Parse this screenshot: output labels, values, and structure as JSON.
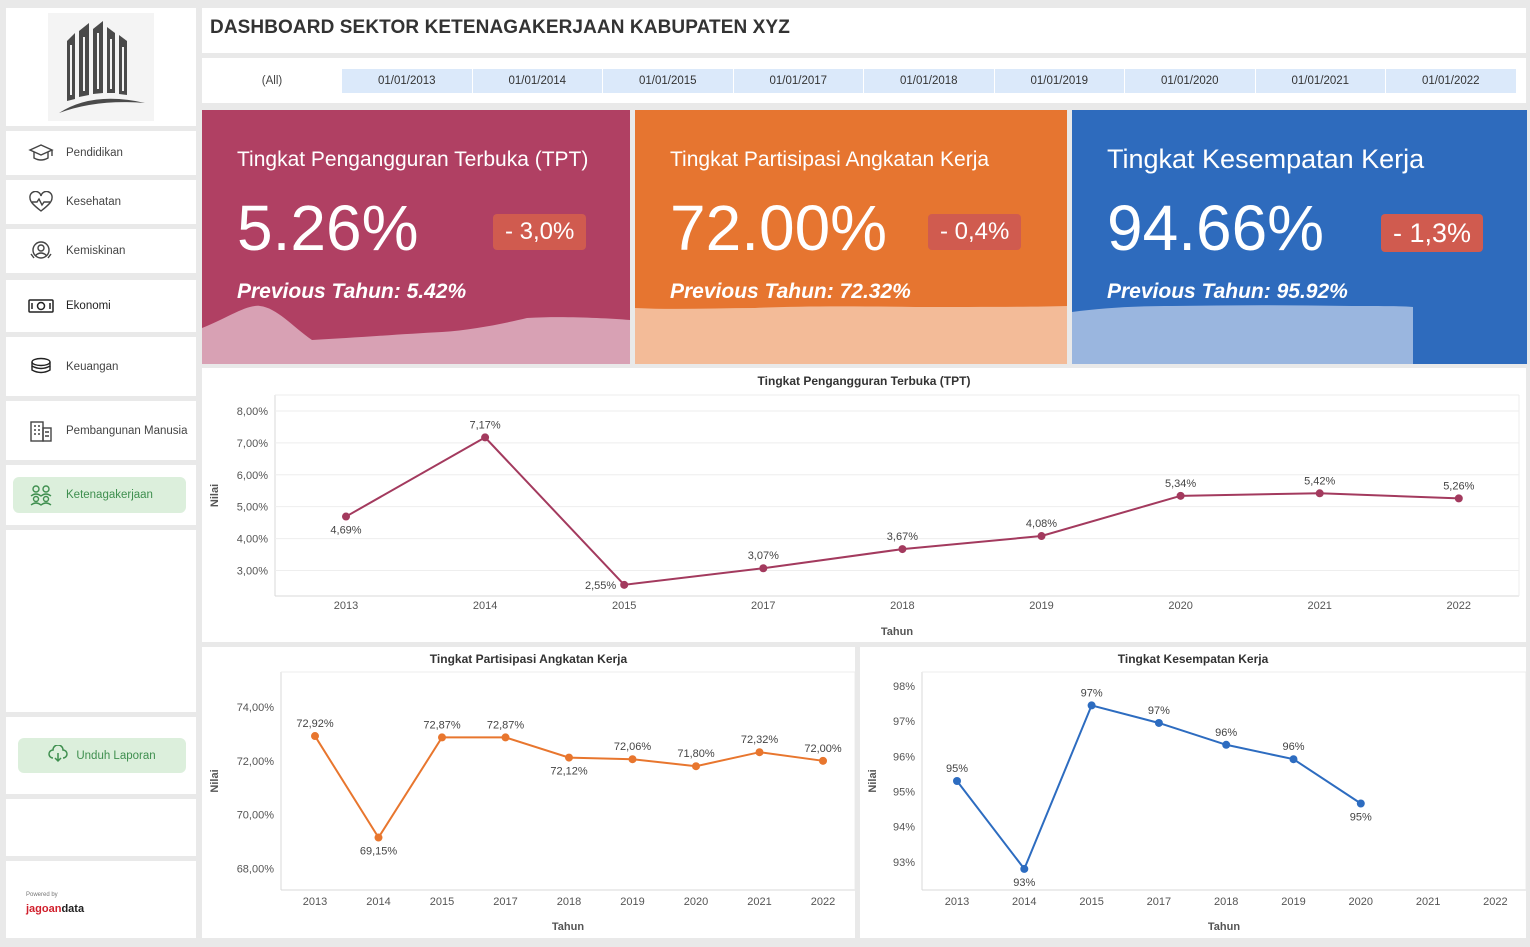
{
  "header": {
    "title": "DASHBOARD SEKTOR KETENAGAKERJAAN KABUPATEN XYZ"
  },
  "filter": {
    "all_label": "(All)",
    "dates": [
      "01/01/2013",
      "01/01/2014",
      "01/01/2015",
      "01/01/2017",
      "01/01/2018",
      "01/01/2019",
      "01/01/2020",
      "01/01/2021",
      "01/01/2022"
    ]
  },
  "sidebar": {
    "items": [
      {
        "label": "Pendidikan",
        "icon": "graduation-cap-icon"
      },
      {
        "label": "Kesehatan",
        "icon": "heart-pulse-icon"
      },
      {
        "label": "Kemiskinan",
        "icon": "poverty-icon"
      },
      {
        "label": "Ekonomi",
        "icon": "banknote-icon"
      },
      {
        "label": "Keuangan",
        "icon": "coins-icon"
      },
      {
        "label": "Pembangunan Manusia",
        "icon": "building-icon"
      },
      {
        "label": "Ketenagakerjaan",
        "icon": "people-icon",
        "active": true
      }
    ],
    "download_label": "Unduh Laporan",
    "powered_label": "Powered by",
    "brand_part1": "jagoan",
    "brand_part2": "data"
  },
  "kpis": [
    {
      "title": "Tingkat Pengangguran Terbuka (TPT)",
      "value": "5.26%",
      "badge": "- 3,0%",
      "previous": "Previous Tahun: 5.42%",
      "color": "#b04063",
      "wave_color": "#d8a1b4"
    },
    {
      "title": "Tingkat Partisipasi Angkatan Kerja",
      "value": "72.00%",
      "badge": "- 0,4%",
      "previous": "Previous Tahun: 72.32%",
      "color": "#e67530",
      "wave_color": "#f3bb98"
    },
    {
      "title": "Tingkat Kesempatan Kerja",
      "value": "94.66%",
      "badge": "- 1,3%",
      "previous": "Previous Tahun: 95.92%",
      "color": "#2e6bbd",
      "wave_color": "#9ab6df"
    }
  ],
  "chart_data": [
    {
      "type": "line",
      "title": "Tingkat Pengangguran Terbuka (TPT)",
      "xlabel": "Tahun",
      "ylabel": "Nilai",
      "categories": [
        "2013",
        "2014",
        "2015",
        "2017",
        "2018",
        "2019",
        "2020",
        "2021",
        "2022"
      ],
      "values": [
        4.69,
        7.17,
        2.55,
        3.07,
        3.67,
        4.08,
        5.34,
        5.42,
        5.26
      ],
      "data_labels": [
        "4,69%",
        "7,17%",
        "2,55%",
        "3,07%",
        "3,67%",
        "4,08%",
        "5,34%",
        "5,42%",
        "5,26%"
      ],
      "label_pos": [
        "below",
        "above",
        "left",
        "above",
        "above",
        "above",
        "above",
        "above",
        "above"
      ],
      "yticks": [
        "3,00%",
        "4,00%",
        "5,00%",
        "6,00%",
        "7,00%",
        "8,00%"
      ],
      "ytick_values": [
        3,
        4,
        5,
        6,
        7,
        8
      ],
      "ylim": [
        2.2,
        8.5
      ],
      "color": "#a33a5e",
      "grid": true
    },
    {
      "type": "line",
      "title": "Tingkat Partisipasi Angkatan Kerja",
      "xlabel": "Tahun",
      "ylabel": "Nilai",
      "categories": [
        "2013",
        "2014",
        "2015",
        "2017",
        "2018",
        "2019",
        "2020",
        "2021",
        "2022"
      ],
      "values": [
        72.92,
        69.15,
        72.87,
        72.87,
        72.12,
        72.06,
        71.8,
        72.32,
        72.0
      ],
      "data_labels": [
        "72,92%",
        "69,15%",
        "72,87%",
        "72,87%",
        "72,12%",
        "72,06%",
        "71,80%",
        "72,32%",
        "72,00%"
      ],
      "label_pos": [
        "above",
        "below",
        "above",
        "above",
        "below",
        "above",
        "above",
        "above",
        "above"
      ],
      "yticks": [
        "68,00%",
        "70,00%",
        "72,00%",
        "74,00%"
      ],
      "ytick_values": [
        68,
        70,
        72,
        74
      ],
      "ylim": [
        67.2,
        75.3
      ],
      "color": "#e8762e",
      "grid": false
    },
    {
      "type": "line",
      "title": "Tingkat Kesempatan Kerja",
      "xlabel": "Tahun",
      "ylabel": "Nilai",
      "categories": [
        "2013",
        "2014",
        "2015",
        "2017",
        "2018",
        "2019",
        "2020",
        "2021",
        "2022"
      ],
      "values": [
        95.3,
        92.8,
        97.45,
        96.95,
        96.33,
        95.92,
        94.66,
        null,
        null
      ],
      "data_labels": [
        "95%",
        "93%",
        "97%",
        "97%",
        "96%",
        "96%",
        "95%",
        "",
        ""
      ],
      "label_pos": [
        "above",
        "below",
        "above",
        "above",
        "above",
        "above",
        "below",
        "above",
        "above"
      ],
      "yticks": [
        "93%",
        "94%",
        "95%",
        "96%",
        "97%",
        "98%"
      ],
      "ytick_values": [
        93,
        94,
        95,
        96,
        97,
        98
      ],
      "ylim": [
        92.2,
        98.4
      ],
      "color": "#2d6cc0",
      "grid": false
    }
  ]
}
